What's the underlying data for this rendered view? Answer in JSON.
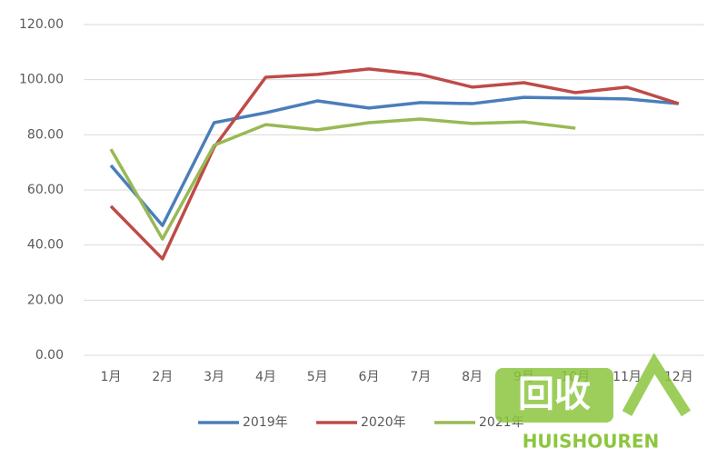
{
  "chart_data": {
    "type": "line",
    "categories": [
      "1月",
      "2月",
      "3月",
      "4月",
      "5月",
      "6月",
      "7月",
      "8月",
      "9月",
      "10月",
      "11月",
      "12月"
    ],
    "series": [
      {
        "name": "2019年",
        "color": "#4a7ebb",
        "values": [
          68.9,
          47.1,
          84.4,
          88.0,
          92.3,
          89.7,
          91.7,
          91.3,
          93.6,
          93.3,
          93.0,
          91.3
        ]
      },
      {
        "name": "2020年",
        "color": "#be4b48",
        "values": [
          54.1,
          35.0,
          75.5,
          100.9,
          101.9,
          103.9,
          101.9,
          97.3,
          98.9,
          95.3,
          97.3,
          91.3
        ]
      },
      {
        "name": "2021年",
        "color": "#98b954",
        "values": [
          74.8,
          42.2,
          76.2,
          83.7,
          81.8,
          84.4,
          85.7,
          84.1,
          84.7,
          82.4,
          null,
          null
        ]
      }
    ],
    "ylim": [
      0,
      120
    ],
    "yticks": [
      {
        "value": 0,
        "label": "0.00"
      },
      {
        "value": 20,
        "label": "20.00"
      },
      {
        "value": 40,
        "label": "40.00"
      },
      {
        "value": 60,
        "label": "60.00"
      },
      {
        "value": 80,
        "label": "80.00"
      },
      {
        "value": 100,
        "label": "100.00"
      },
      {
        "value": 120,
        "label": "120.00"
      }
    ],
    "grid": true,
    "legend": "bottom"
  },
  "watermark": {
    "logo": "回收",
    "text": "HUISHOUREN"
  }
}
